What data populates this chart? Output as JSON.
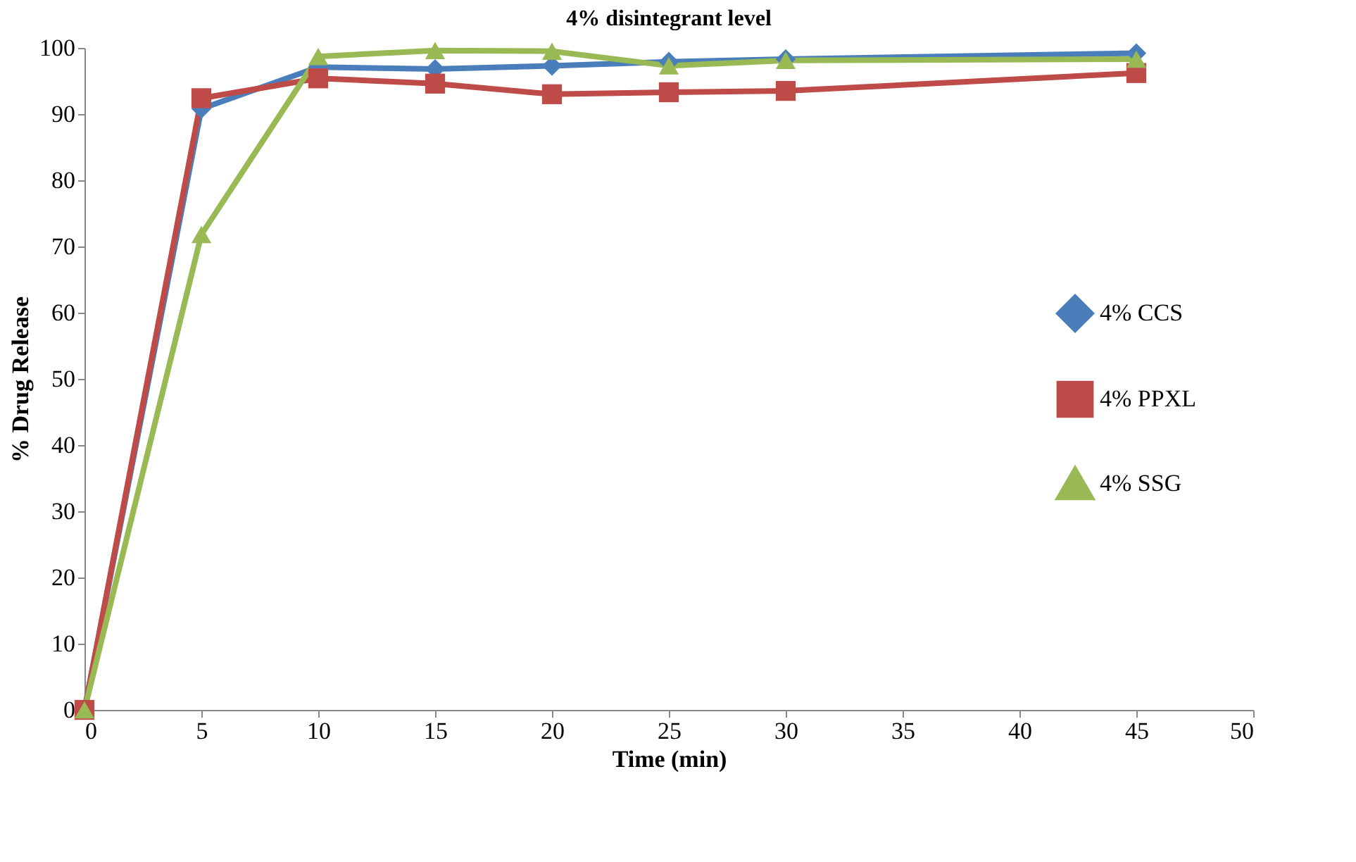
{
  "chart_data": {
    "type": "line",
    "title": "4% disintegrant level",
    "xlabel": "Time  (min)",
    "ylabel": "% Drug Release",
    "x": [
      0,
      5,
      10,
      15,
      20,
      25,
      30,
      45
    ],
    "series": [
      {
        "name": "4% CCS",
        "color": "#4a7ebb",
        "marker": "diamond",
        "values": [
          0,
          90.8,
          97.1,
          96.8,
          97.3,
          97.9,
          98.3,
          99.2
        ]
      },
      {
        "name": "4% PPXL",
        "color": "#be4b48",
        "marker": "square",
        "values": [
          0,
          92.4,
          95.4,
          94.6,
          93.0,
          93.3,
          93.5,
          96.2
        ]
      },
      {
        "name": "4% SSG",
        "color": "#98b954",
        "marker": "triangle",
        "values": [
          0,
          71.8,
          98.7,
          99.6,
          99.5,
          97.3,
          98.1,
          98.3
        ]
      }
    ],
    "xlim": [
      0,
      50
    ],
    "xticks": [
      0,
      5,
      10,
      15,
      20,
      25,
      30,
      35,
      40,
      45,
      50
    ],
    "ylim": [
      0,
      100
    ],
    "yticks": [
      0,
      10,
      20,
      30,
      40,
      50,
      60,
      70,
      80,
      90,
      100
    ],
    "grid": false,
    "legend": "right",
    "line_style": "solid"
  }
}
